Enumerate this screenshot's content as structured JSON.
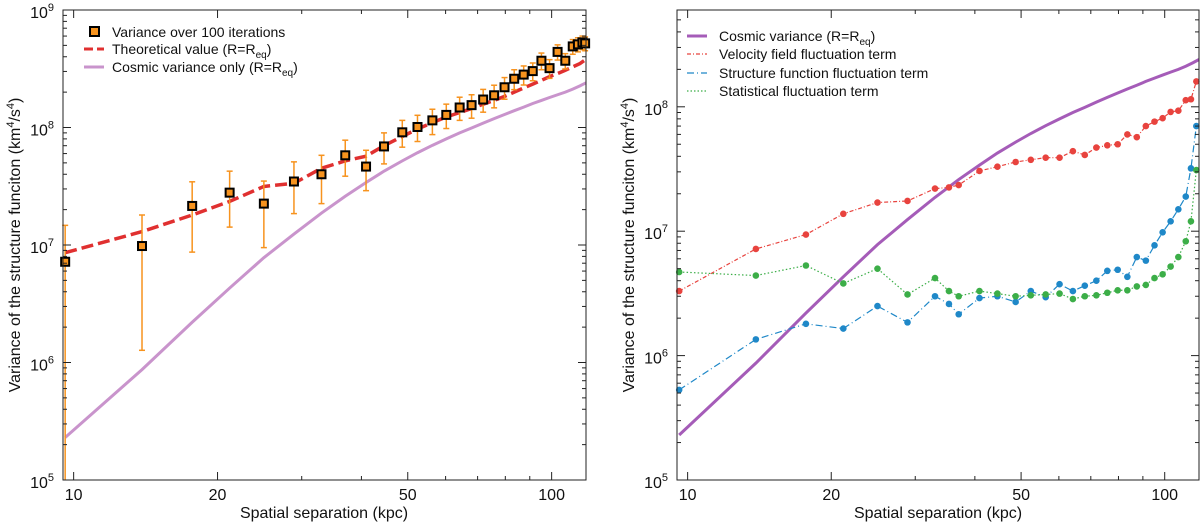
{
  "chart_data": [
    {
      "type": "line",
      "scale": {
        "x": "log",
        "y": "log"
      },
      "xlabel": "Spatial separation (kpc)",
      "ylabel": "Variance of the structure funciton (km4/s4)",
      "ylabel_base": "Variance of the structure funciton (km",
      "ylabel_exp1": "4",
      "ylabel_mid": "/s",
      "ylabel_exp2": "4",
      "ylabel_end": ")",
      "xlim": [
        9.5,
        118
      ],
      "ylim": [
        100000,
        1000000000
      ],
      "xticks": [
        {
          "value": 10,
          "label": "10"
        },
        {
          "value": 20,
          "label": "20"
        },
        {
          "value": 50,
          "label": "50"
        },
        {
          "value": 100,
          "label": "100"
        }
      ],
      "yticks": [
        {
          "exp": 5,
          "label": "10",
          "sup": "5"
        },
        {
          "exp": 6,
          "label": "10",
          "sup": "6"
        },
        {
          "exp": 7,
          "label": "10",
          "sup": "7"
        },
        {
          "exp": 8,
          "label": "10",
          "sup": "8"
        },
        {
          "exp": 9,
          "label": "10",
          "sup": "9"
        }
      ],
      "legend": {
        "placement": "top-left",
        "entries": [
          {
            "label": "Variance over 100 iterations",
            "marker": "square",
            "color": "#f7931e"
          },
          {
            "label": "Theoretical value (R=R",
            "sub": "eq",
            "end": ")",
            "style": "dashed",
            "color": "#e03030"
          },
          {
            "label": "Cosmic variance only (R=R",
            "sub": "eq",
            "end": ")",
            "style": "solid",
            "color": "#c994cc"
          }
        ]
      },
      "series": [
        {
          "name": "Variance over 100 iterations",
          "color": "#f7931e",
          "points": [
            {
              "x": 9.6,
              "y": 7200000,
              "ylo": 95000,
              "yhi": 14700000
            },
            {
              "x": 13.9,
              "y": 9800000,
              "ylo": 1270000,
              "yhi": 18000000
            },
            {
              "x": 17.7,
              "y": 21500000,
              "ylo": 8700000,
              "yhi": 34500000
            },
            {
              "x": 21.2,
              "y": 27900000,
              "ylo": 14200000,
              "yhi": 42500000
            },
            {
              "x": 25.0,
              "y": 22500000,
              "ylo": 9500000,
              "yhi": 35000000
            },
            {
              "x": 28.9,
              "y": 34700000,
              "ylo": 18500000,
              "yhi": 51000000
            },
            {
              "x": 33.0,
              "y": 40000000,
              "ylo": 22500000,
              "yhi": 58000000
            },
            {
              "x": 37.0,
              "y": 58000000,
              "ylo": 38500000,
              "yhi": 78000000
            },
            {
              "x": 40.9,
              "y": 46500000,
              "ylo": 29000000,
              "yhi": 64000000
            },
            {
              "x": 44.6,
              "y": 69000000,
              "ylo": 49000000,
              "yhi": 90000000
            },
            {
              "x": 48.7,
              "y": 91000000,
              "ylo": 68000000,
              "yhi": 115000000
            },
            {
              "x": 52.4,
              "y": 101000000,
              "ylo": 76000000,
              "yhi": 127000000
            },
            {
              "x": 56.3,
              "y": 115000000,
              "ylo": 87000000,
              "yhi": 143000000
            },
            {
              "x": 60.2,
              "y": 128000000,
              "ylo": 98000000,
              "yhi": 158000000
            },
            {
              "x": 64.2,
              "y": 148000000,
              "ylo": 115000000,
              "yhi": 181000000
            },
            {
              "x": 68.0,
              "y": 155000000,
              "ylo": 120000000,
              "yhi": 190000000
            },
            {
              "x": 71.9,
              "y": 173000000,
              "ylo": 135000000,
              "yhi": 211000000
            },
            {
              "x": 75.8,
              "y": 188000000,
              "ylo": 147000000,
              "yhi": 229000000
            },
            {
              "x": 79.7,
              "y": 220000000,
              "ylo": 174000000,
              "yhi": 266000000
            },
            {
              "x": 83.5,
              "y": 260000000,
              "ylo": 210000000,
              "yhi": 310000000
            },
            {
              "x": 87.4,
              "y": 282000000,
              "ylo": 230000000,
              "yhi": 334000000
            },
            {
              "x": 91.3,
              "y": 302000000,
              "ylo": 250000000,
              "yhi": 354000000
            },
            {
              "x": 95.2,
              "y": 370000000,
              "ylo": 310000000,
              "yhi": 430000000
            },
            {
              "x": 99.0,
              "y": 320000000,
              "ylo": 262000000,
              "yhi": 378000000
            },
            {
              "x": 102.9,
              "y": 440000000,
              "ylo": 375000000,
              "yhi": 505000000
            },
            {
              "x": 106.8,
              "y": 370000000,
              "ylo": 315000000,
              "yhi": 425000000
            },
            {
              "x": 110.7,
              "y": 490000000,
              "ylo": 420000000,
              "yhi": 560000000
            },
            {
              "x": 113.5,
              "y": 510000000,
              "ylo": 440000000,
              "yhi": 580000000
            },
            {
              "x": 116.0,
              "y": 530000000,
              "ylo": 460000000,
              "yhi": 600000000
            },
            {
              "x": 117.5,
              "y": 520000000,
              "ylo": 450000000,
              "yhi": 590000000
            }
          ]
        },
        {
          "name": "Theoretical value (R=Req)",
          "color": "#e03030",
          "style": "dashed",
          "x": [
            9.6,
            13.9,
            17.7,
            21.2,
            25.0,
            28.9,
            33.0,
            37.0,
            40.9,
            44.6,
            48.7,
            52.4,
            56.3,
            60.2,
            64.2,
            68.0,
            71.9,
            75.8,
            79.7,
            83.5,
            87.4,
            91.3,
            95.2,
            99.0,
            102.9,
            106.8,
            110.7,
            114.6,
            118.0
          ],
          "y": [
            8600000,
            13000000,
            18000000,
            23500000,
            31500000,
            33500000,
            45000000,
            52000000,
            57000000,
            70000000,
            84000000,
            97000000,
            110000000,
            123000000,
            134000000,
            145000000,
            158000000,
            170000000,
            184000000,
            200000000,
            217000000,
            234000000,
            252000000,
            271000000,
            288000000,
            307000000,
            328000000,
            350000000,
            380000000
          ]
        },
        {
          "name": "Cosmic variance only (R=Req)",
          "color": "#c994cc",
          "style": "solid",
          "x": [
            9.6,
            13.9,
            17.7,
            21.2,
            25.0,
            28.9,
            33.0,
            37.0,
            40.9,
            44.6,
            48.7,
            52.4,
            56.3,
            60.2,
            64.2,
            68.0,
            71.9,
            75.8,
            79.7,
            83.5,
            87.4,
            91.3,
            95.2,
            99.0,
            102.9,
            106.8,
            110.7,
            114.6,
            118.0
          ],
          "y": [
            230000,
            870000,
            2200000,
            4300000,
            7800000,
            12400000,
            18700000,
            26000000,
            34000000,
            42500000,
            52000000,
            61000000,
            70500000,
            80000000,
            90000000,
            99000000,
            109000000,
            119000000,
            129000000,
            139000000,
            149000000,
            160000000,
            170000000,
            180000000,
            190000000,
            200000000,
            212000000,
            226000000,
            240000000
          ]
        }
      ]
    },
    {
      "type": "line",
      "scale": {
        "x": "log",
        "y": "log"
      },
      "xlabel": "Spatial separation (kpc)",
      "ylabel": "Variance of the structure funciton (km4/s4)",
      "ylabel_base": "Variance of the structure funciton (km",
      "ylabel_exp1": "4",
      "ylabel_mid": "/s",
      "ylabel_exp2": "4",
      "ylabel_end": ")",
      "xlim": [
        9.5,
        118
      ],
      "ylim": [
        100000,
        600000000
      ],
      "xticks": [
        {
          "value": 10,
          "label": "10"
        },
        {
          "value": 20,
          "label": "20"
        },
        {
          "value": 50,
          "label": "50"
        },
        {
          "value": 100,
          "label": "100"
        }
      ],
      "yticks": [
        {
          "exp": 5,
          "label": "10",
          "sup": "5"
        },
        {
          "exp": 6,
          "label": "10",
          "sup": "6"
        },
        {
          "exp": 7,
          "label": "10",
          "sup": "7"
        },
        {
          "exp": 8,
          "label": "10",
          "sup": "8"
        }
      ],
      "legend": {
        "placement": "top-left",
        "entries": [
          {
            "label": "Cosmic variance (R=R",
            "sub": "eq",
            "end": ")",
            "style": "solid",
            "color": "#a55cb8"
          },
          {
            "label": "Velocity field fluctuation term",
            "style": "dashdot",
            "color": "#e8433e"
          },
          {
            "label": "Structure function fluctuation term",
            "style": "dashdot",
            "color": "#1f88c8"
          },
          {
            "label": "Statistical fluctuation term",
            "style": "dotted",
            "color": "#3cae48"
          }
        ]
      },
      "series": [
        {
          "name": "Cosmic variance (R=Req)",
          "color": "#a55cb8",
          "style": "solid",
          "markers": false,
          "x": [
            9.6,
            13.9,
            17.7,
            21.2,
            25.0,
            28.9,
            33.0,
            37.0,
            40.9,
            44.6,
            48.7,
            52.4,
            56.3,
            60.2,
            64.2,
            68.0,
            71.9,
            75.8,
            79.7,
            83.5,
            87.4,
            91.3,
            95.2,
            99.0,
            102.9,
            106.8,
            110.7,
            114.6,
            118.0
          ],
          "y": [
            230000,
            870000,
            2200000,
            4300000,
            7800000,
            12400000,
            18700000,
            26000000,
            34000000,
            42500000,
            52000000,
            61000000,
            70500000,
            80000000,
            90000000,
            99000000,
            109000000,
            119000000,
            129000000,
            139000000,
            149000000,
            160000000,
            170000000,
            180000000,
            190000000,
            200000000,
            212000000,
            226000000,
            240000000
          ]
        },
        {
          "name": "Velocity field fluctuation term",
          "color": "#e8433e",
          "style": "dashdot",
          "markers": true,
          "x": [
            9.6,
            13.9,
            17.7,
            21.2,
            25.0,
            28.9,
            33.0,
            35.3,
            37.0,
            40.9,
            44.6,
            48.7,
            52.4,
            56.3,
            60.2,
            64.2,
            68.0,
            71.9,
            75.8,
            79.7,
            83.5,
            87.4,
            91.3,
            95.2,
            99.0,
            102.9,
            106.8,
            110.7,
            113.5,
            116.5
          ],
          "y": [
            3300000,
            7200000,
            9400000,
            13800000,
            17000000,
            17500000,
            22000000,
            22500000,
            23500000,
            30500000,
            33000000,
            36000000,
            37500000,
            39000000,
            39000000,
            44000000,
            41000000,
            47000000,
            49000000,
            50000000,
            60000000,
            57000000,
            70000000,
            76000000,
            81000000,
            91000000,
            93000000,
            113000000,
            115000000,
            160000000
          ]
        },
        {
          "name": "Structure function fluctuation term",
          "color": "#1f88c8",
          "style": "dashdot",
          "markers": true,
          "x": [
            9.6,
            13.9,
            17.7,
            21.2,
            25.0,
            28.9,
            33.0,
            35.3,
            37.0,
            40.9,
            44.6,
            48.7,
            52.4,
            56.3,
            60.2,
            64.2,
            68.0,
            71.9,
            75.8,
            79.7,
            83.5,
            87.4,
            91.3,
            95.2,
            99.0,
            102.9,
            106.8,
            110.7,
            113.5,
            116.5
          ],
          "y": [
            530000,
            1350000,
            1800000,
            1650000,
            2500000,
            1850000,
            3000000,
            2600000,
            2150000,
            2900000,
            3000000,
            2700000,
            3300000,
            2950000,
            3750000,
            3300000,
            3650000,
            4000000,
            4800000,
            4900000,
            4300000,
            6200000,
            5800000,
            7700000,
            9800000,
            12000000,
            15000000,
            19000000,
            32000000,
            70000000
          ]
        },
        {
          "name": "Statistical fluctuation term",
          "color": "#3cae48",
          "style": "dotted",
          "markers": true,
          "x": [
            9.6,
            13.9,
            17.7,
            21.2,
            25.0,
            28.9,
            33.0,
            35.3,
            37.0,
            40.9,
            44.6,
            48.7,
            52.4,
            56.3,
            60.2,
            64.2,
            68.0,
            71.9,
            75.8,
            79.7,
            83.5,
            87.4,
            91.3,
            95.2,
            99.0,
            102.9,
            106.8,
            110.7,
            113.5,
            116.5
          ],
          "y": [
            4700000,
            4400000,
            5300000,
            3800000,
            5000000,
            3100000,
            4200000,
            3300000,
            3000000,
            3300000,
            3150000,
            3000000,
            3050000,
            3100000,
            3150000,
            2850000,
            3000000,
            3050000,
            3200000,
            3350000,
            3350000,
            3600000,
            3700000,
            4200000,
            4500000,
            5200000,
            6200000,
            8300000,
            12000000,
            31000000
          ]
        }
      ]
    }
  ]
}
